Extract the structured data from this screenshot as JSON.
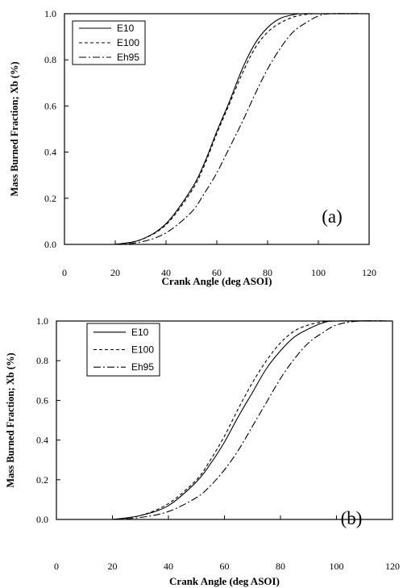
{
  "chart_data": [
    {
      "type": "line",
      "panel_label": "(a)",
      "xlabel": "Crank Angle (deg ASOI)",
      "ylabel": "Mass Burned Fraction; Xb (%)",
      "xlim": [
        0,
        120
      ],
      "ylim": [
        0,
        1.0
      ],
      "x_ticks": [
        "0",
        "20",
        "40",
        "60",
        "80",
        "100",
        "120"
      ],
      "y_ticks": [
        "0.0",
        "0.2",
        "0.4",
        "0.6",
        "0.8",
        "1.0"
      ],
      "legend_position": "top-left",
      "series": [
        {
          "name": "E10",
          "dash": "solid",
          "x": [
            20,
            30,
            40,
            50,
            55,
            60,
            65,
            70,
            75,
            80,
            85,
            90,
            93,
            100,
            120
          ],
          "y": [
            0.0,
            0.02,
            0.09,
            0.24,
            0.35,
            0.49,
            0.62,
            0.76,
            0.87,
            0.94,
            0.98,
            0.995,
            1.0,
            1.0,
            1.0
          ]
        },
        {
          "name": "E100",
          "dash": "dashed",
          "x": [
            20,
            30,
            40,
            50,
            55,
            60,
            65,
            70,
            75,
            80,
            85,
            90,
            95,
            100,
            120
          ],
          "y": [
            0.0,
            0.02,
            0.085,
            0.23,
            0.34,
            0.48,
            0.61,
            0.74,
            0.85,
            0.92,
            0.96,
            0.985,
            0.997,
            1.0,
            1.0
          ]
        },
        {
          "name": "Eh95",
          "dash": "dashdot",
          "x": [
            20,
            30,
            40,
            50,
            55,
            60,
            65,
            70,
            75,
            80,
            85,
            90,
            95,
            100,
            105,
            120
          ],
          "y": [
            0.0,
            0.01,
            0.05,
            0.14,
            0.22,
            0.31,
            0.42,
            0.53,
            0.65,
            0.76,
            0.85,
            0.92,
            0.96,
            0.99,
            1.0,
            1.0
          ]
        }
      ]
    },
    {
      "type": "line",
      "panel_label": "(b)",
      "xlabel": "Crank Angle (deg ASOI)",
      "ylabel": "Mass Burned Fraction; Xb (%)",
      "xlim": [
        0,
        120
      ],
      "ylim": [
        0,
        1.0
      ],
      "x_ticks": [
        "0",
        "20",
        "40",
        "60",
        "80",
        "100",
        "120"
      ],
      "y_ticks": [
        "0.0",
        "0.2",
        "0.4",
        "0.6",
        "0.8",
        "1.0"
      ],
      "legend_position": "top-left",
      "series": [
        {
          "name": "E10",
          "dash": "solid",
          "x": [
            20,
            30,
            40,
            50,
            55,
            60,
            65,
            70,
            75,
            80,
            85,
            90,
            95,
            100,
            120
          ],
          "y": [
            0.0,
            0.02,
            0.07,
            0.19,
            0.28,
            0.39,
            0.52,
            0.64,
            0.76,
            0.85,
            0.92,
            0.96,
            0.99,
            1.0,
            1.0
          ]
        },
        {
          "name": "E100",
          "dash": "dashed",
          "x": [
            20,
            30,
            40,
            50,
            55,
            60,
            65,
            70,
            75,
            80,
            85,
            90,
            95,
            100,
            120
          ],
          "y": [
            0.0,
            0.02,
            0.08,
            0.2,
            0.3,
            0.42,
            0.56,
            0.69,
            0.8,
            0.89,
            0.95,
            0.98,
            0.995,
            1.0,
            1.0
          ]
        },
        {
          "name": "Eh95",
          "dash": "dashdot",
          "x": [
            20,
            30,
            40,
            50,
            55,
            60,
            65,
            70,
            75,
            80,
            85,
            90,
            95,
            100,
            108,
            120
          ],
          "y": [
            0.0,
            0.01,
            0.04,
            0.11,
            0.17,
            0.25,
            0.35,
            0.47,
            0.59,
            0.71,
            0.81,
            0.89,
            0.94,
            0.98,
            1.0,
            1.0
          ]
        }
      ]
    }
  ]
}
